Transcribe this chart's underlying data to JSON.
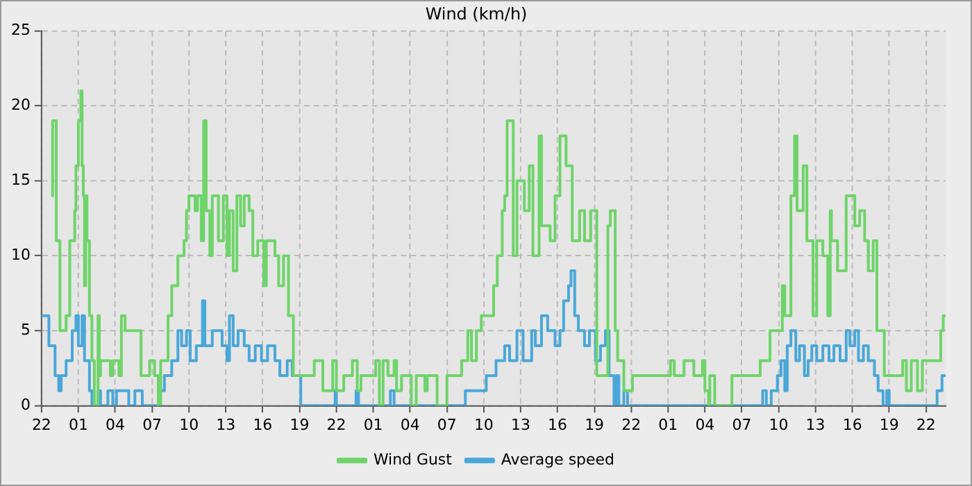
{
  "chart_data": {
    "type": "step",
    "title": "Wind (km/h)",
    "xlim": [
      "--01-01T22:00",
      "--01-04T23:36"
    ],
    "ylim": [
      0,
      25
    ],
    "xticks": [
      {
        "value": "--01-01T22:00",
        "label": "22"
      },
      {
        "value": "--01-02T01:00",
        "label": "01"
      },
      {
        "value": "--01-02T04:00",
        "label": "04"
      },
      {
        "value": "--01-02T07:00",
        "label": "07"
      },
      {
        "value": "--01-02T10:00",
        "label": "10"
      },
      {
        "value": "--01-02T13:00",
        "label": "13"
      },
      {
        "value": "--01-02T16:00",
        "label": "16"
      },
      {
        "value": "--01-02T19:00",
        "label": "19"
      },
      {
        "value": "--01-02T22:00",
        "label": "22"
      },
      {
        "value": "--01-03T01:00",
        "label": "01"
      },
      {
        "value": "--01-03T04:00",
        "label": "04"
      },
      {
        "value": "--01-03T07:00",
        "label": "07"
      },
      {
        "value": "--01-03T10:00",
        "label": "10"
      },
      {
        "value": "--01-03T13:00",
        "label": "13"
      },
      {
        "value": "--01-03T16:00",
        "label": "16"
      },
      {
        "value": "--01-03T19:00",
        "label": "19"
      },
      {
        "value": "--01-03T22:00",
        "label": "22"
      },
      {
        "value": "--01-04T01:00",
        "label": "01"
      },
      {
        "value": "--01-04T04:00",
        "label": "04"
      },
      {
        "value": "--01-04T07:00",
        "label": "07"
      },
      {
        "value": "--01-04T10:00",
        "label": "10"
      },
      {
        "value": "--01-04T13:00",
        "label": "13"
      },
      {
        "value": "--01-04T16:00",
        "label": "16"
      },
      {
        "value": "--01-04T19:00",
        "label": "19"
      },
      {
        "value": "--01-04T22:00",
        "label": "22"
      }
    ],
    "yticks": [
      0,
      5,
      10,
      15,
      20,
      25
    ],
    "grid": true,
    "legend": "bottom",
    "marker": "none",
    "line_style": "solid",
    "series": [
      {
        "name": "Wind Gust",
        "color": "#6fd46a",
        "x": [
          "--01-01T22:48",
          "--01-01T22:54",
          "--01-01T23:12",
          "--01-01T23:30",
          "--01-02T00:00",
          "--01-02T00:18",
          "--01-02T00:42",
          "--01-02T00:48",
          "--01-02T01:00",
          "--01-02T01:12",
          "--01-02T01:18",
          "--01-02T01:24",
          "--01-02T01:30",
          "--01-02T01:36",
          "--01-02T01:42",
          "--01-02T01:54",
          "--01-02T02:06",
          "--01-02T02:18",
          "--01-02T02:36",
          "--01-02T02:42",
          "--01-02T02:48",
          "--01-02T03:36",
          "--01-02T03:48",
          "--01-02T04:18",
          "--01-02T04:30",
          "--01-02T04:48",
          "--01-02T05:24",
          "--01-02T06:06",
          "--01-02T06:48",
          "--01-02T07:12",
          "--01-02T07:30",
          "--01-02T07:42",
          "--01-02T08:18",
          "--01-02T08:36",
          "--01-02T09:06",
          "--01-02T09:36",
          "--01-02T09:48",
          "--01-02T10:00",
          "--01-02T10:30",
          "--01-02T10:42",
          "--01-02T11:00",
          "--01-02T11:12",
          "--01-02T11:24",
          "--01-02T11:42",
          "--01-02T11:54",
          "--01-02T12:24",
          "--01-02T12:48",
          "--01-02T13:06",
          "--01-02T13:18",
          "--01-02T13:36",
          "--01-02T13:54",
          "--01-02T14:12",
          "--01-02T14:30",
          "--01-02T14:54",
          "--01-02T15:12",
          "--01-02T15:36",
          "--01-02T16:06",
          "--01-02T16:18",
          "--01-02T17:00",
          "--01-02T17:18",
          "--01-02T17:42",
          "--01-02T18:06",
          "--01-02T18:30",
          "--01-02T19:48",
          "--01-02T20:12",
          "--01-02T20:54",
          "--01-02T21:42",
          "--01-02T22:00",
          "--01-02T22:36",
          "--01-02T23:18",
          "--01-02T23:42",
          "--01-03T00:00",
          "--01-03T01:12",
          "--01-03T01:30",
          "--01-03T01:48",
          "--01-03T02:12",
          "--01-03T02:42",
          "--01-03T02:54",
          "--01-03T03:18",
          "--01-03T04:06",
          "--01-03T04:30",
          "--01-03T05:12",
          "--01-03T05:24",
          "--01-03T06:12",
          "--01-03T07:00",
          "--01-03T08:12",
          "--01-03T08:42",
          "--01-03T09:00",
          "--01-03T09:24",
          "--01-03T09:48",
          "--01-03T10:48",
          "--01-03T11:06",
          "--01-03T11:30",
          "--01-03T11:42",
          "--01-03T11:54",
          "--01-03T12:24",
          "--01-03T12:42",
          "--01-03T13:18",
          "--01-03T13:42",
          "--01-03T14:00",
          "--01-03T14:30",
          "--01-03T14:42",
          "--01-03T15:24",
          "--01-03T15:48",
          "--01-03T16:12",
          "--01-03T16:42",
          "--01-03T17:12",
          "--01-03T17:48",
          "--01-03T18:12",
          "--01-03T18:42",
          "--01-03T19:12",
          "--01-03T20:06",
          "--01-03T20:18",
          "--01-03T20:42",
          "--01-03T20:54",
          "--01-03T21:24",
          "--01-03T22:06",
          "--01-04T01:12",
          "--01-04T01:30",
          "--01-04T02:18",
          "--01-04T03:06",
          "--01-04T03:48",
          "--01-04T04:00",
          "--01-04T04:18",
          "--01-04T04:24",
          "--01-04T04:48",
          "--01-04T06:12",
          "--01-04T08:30",
          "--01-04T09:18",
          "--01-04T10:18",
          "--01-04T10:30",
          "--01-04T11:00",
          "--01-04T11:18",
          "--01-04T11:30",
          "--01-04T12:00",
          "--01-04T12:18",
          "--01-04T12:48",
          "--01-04T13:06",
          "--01-04T13:36",
          "--01-04T14:00",
          "--01-04T14:12",
          "--01-04T14:18",
          "--01-04T14:48",
          "--01-04T15:30",
          "--01-04T16:12",
          "--01-04T16:36",
          "--01-04T17:00",
          "--01-04T17:18",
          "--01-04T17:42",
          "--01-04T18:00",
          "--01-04T18:36",
          "--01-04T20:06",
          "--01-04T20:24",
          "--01-04T20:48",
          "--01-04T21:18",
          "--01-04T21:42",
          "--01-04T23:12",
          "--01-04T23:24",
          "--01-04T23:36"
        ],
        "values": [
          14,
          19,
          11,
          5,
          6,
          11,
          13,
          16,
          19,
          21,
          16,
          14,
          8,
          14,
          11,
          6,
          3,
          0,
          6,
          2,
          3,
          2,
          3,
          2,
          6,
          5,
          5,
          2,
          3,
          2,
          0,
          3,
          6,
          8,
          10,
          11,
          13,
          14,
          13,
          14,
          11,
          19,
          13,
          10,
          14,
          11,
          14,
          10,
          13,
          9,
          14,
          12,
          14,
          13,
          10,
          11,
          8,
          11,
          10,
          8,
          10,
          6,
          2,
          2,
          3,
          1,
          3,
          1,
          2,
          3,
          1,
          2,
          3,
          0,
          3,
          2,
          3,
          1,
          2,
          0,
          2,
          1,
          2,
          0,
          2,
          3,
          5,
          3,
          5,
          6,
          8,
          10,
          13,
          14,
          19,
          10,
          15,
          13,
          16,
          10,
          18,
          12,
          11,
          14,
          18,
          16,
          11,
          13,
          11,
          13,
          2,
          12,
          13,
          5,
          3,
          1,
          2,
          3,
          2,
          3,
          2,
          3,
          1,
          0,
          2,
          0,
          2,
          3,
          5,
          8,
          6,
          14,
          18,
          13,
          16,
          11,
          6,
          11,
          10,
          6,
          13,
          11,
          9,
          14,
          12,
          13,
          11,
          9,
          11,
          5,
          2,
          3,
          1,
          3,
          1,
          3,
          5,
          6,
          6
        ]
      },
      {
        "name": "Average speed",
        "color": "#4aa7d9",
        "x": [
          "--01-01T22:00",
          "--01-01T22:24",
          "--01-01T22:36",
          "--01-01T23:06",
          "--01-01T23:24",
          "--01-01T23:36",
          "--01-02T00:00",
          "--01-02T00:30",
          "--01-02T00:48",
          "--01-02T01:00",
          "--01-02T01:18",
          "--01-02T01:30",
          "--01-02T01:54",
          "--01-02T02:06",
          "--01-02T02:36",
          "--01-02T02:48",
          "--01-02T03:24",
          "--01-02T03:48",
          "--01-02T04:06",
          "--01-02T04:42",
          "--01-02T05:06",
          "--01-02T05:36",
          "--01-02T06:12",
          "--01-02T07:36",
          "--01-02T08:00",
          "--01-02T08:36",
          "--01-02T09:06",
          "--01-02T09:24",
          "--01-02T09:48",
          "--01-02T10:06",
          "--01-02T10:36",
          "--01-02T11:06",
          "--01-02T11:18",
          "--01-02T11:54",
          "--01-02T12:42",
          "--01-02T13:06",
          "--01-02T13:18",
          "--01-02T13:36",
          "--01-02T14:00",
          "--01-02T14:30",
          "--01-02T14:54",
          "--01-02T15:24",
          "--01-02T15:54",
          "--01-02T16:24",
          "--01-02T17:00",
          "--01-02T17:24",
          "--01-02T18:00",
          "--01-02T18:24",
          "--01-02T19:06",
          "--01-02T21:54",
          "--01-02T22:00",
          "--01-02T23:36",
          "--01-02T23:48",
          "--01-03T02:24",
          "--01-03T02:42",
          "--01-03T08:30",
          "--01-03T10:12",
          "--01-03T11:00",
          "--01-03T11:42",
          "--01-03T12:06",
          "--01-03T12:42",
          "--01-03T13:12",
          "--01-03T13:54",
          "--01-03T14:12",
          "--01-03T14:42",
          "--01-03T15:12",
          "--01-03T15:48",
          "--01-03T16:12",
          "--01-03T16:30",
          "--01-03T16:54",
          "--01-03T17:06",
          "--01-03T17:24",
          "--01-03T17:42",
          "--01-03T18:12",
          "--01-03T18:36",
          "--01-03T19:06",
          "--01-03T19:30",
          "--01-03T19:54",
          "--01-03T20:12",
          "--01-03T20:36",
          "--01-03T20:48",
          "--01-03T21:00",
          "--01-03T21:24",
          "--01-03T21:42",
          "--01-04T08:42",
          "--01-04T09:00",
          "--01-04T09:24",
          "--01-04T09:54",
          "--01-04T10:12",
          "--01-04T10:30",
          "--01-04T10:42",
          "--01-04T11:00",
          "--01-04T11:24",
          "--01-04T11:42",
          "--01-04T12:06",
          "--01-04T12:24",
          "--01-04T12:42",
          "--01-04T13:06",
          "--01-04T13:36",
          "--01-04T14:06",
          "--01-04T14:30",
          "--01-04T15:00",
          "--01-04T15:30",
          "--01-04T15:48",
          "--01-04T16:12",
          "--01-04T16:30",
          "--01-04T16:54",
          "--01-04T17:18",
          "--01-04T17:48",
          "--01-04T18:06",
          "--01-04T18:30",
          "--01-04T18:48",
          "--01-04T19:00",
          "--01-04T22:54",
          "--01-04T23:18",
          "--01-04T23:36"
        ],
        "values": [
          6,
          6,
          4,
          2,
          1,
          2,
          3,
          5,
          6,
          4,
          6,
          3,
          1,
          0,
          1,
          0,
          1,
          0,
          1,
          1,
          0,
          1,
          0,
          1,
          2,
          3,
          5,
          4,
          5,
          3,
          4,
          7,
          4,
          5,
          4,
          3,
          6,
          4,
          5,
          4,
          3,
          4,
          3,
          4,
          3,
          2,
          3,
          2,
          0,
          1,
          0,
          1,
          0,
          1,
          0,
          1,
          2,
          3,
          4,
          3,
          5,
          3,
          5,
          4,
          6,
          5,
          4,
          5,
          7,
          8,
          9,
          6,
          5,
          4,
          5,
          3,
          4,
          5,
          2,
          0,
          2,
          0,
          1,
          0,
          1,
          0,
          1,
          2,
          3,
          1,
          4,
          5,
          3,
          4,
          2,
          3,
          4,
          3,
          4,
          3,
          4,
          3,
          5,
          4,
          5,
          3,
          4,
          3,
          2,
          1,
          0,
          1,
          0,
          1,
          2,
          2
        ]
      }
    ]
  }
}
